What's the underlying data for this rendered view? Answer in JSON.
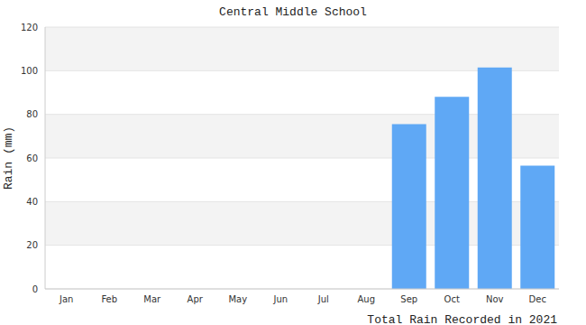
{
  "chart_data": {
    "type": "bar",
    "title": "Central Middle School",
    "x_label": "Total Rain Recorded in 2021",
    "y_label": "Rain (mm)",
    "categories": [
      "Jan",
      "Feb",
      "Mar",
      "Apr",
      "May",
      "Jun",
      "Jul",
      "Aug",
      "Sep",
      "Oct",
      "Nov",
      "Dec"
    ],
    "values": [
      0,
      0,
      0,
      0,
      0,
      0,
      0,
      0,
      75.5,
      88,
      101.5,
      56.5
    ],
    "color": "#5fa8f5",
    "ylim": [
      0,
      120
    ],
    "yticks": [
      0,
      20,
      40,
      60,
      80,
      100,
      120
    ],
    "grid": true
  }
}
